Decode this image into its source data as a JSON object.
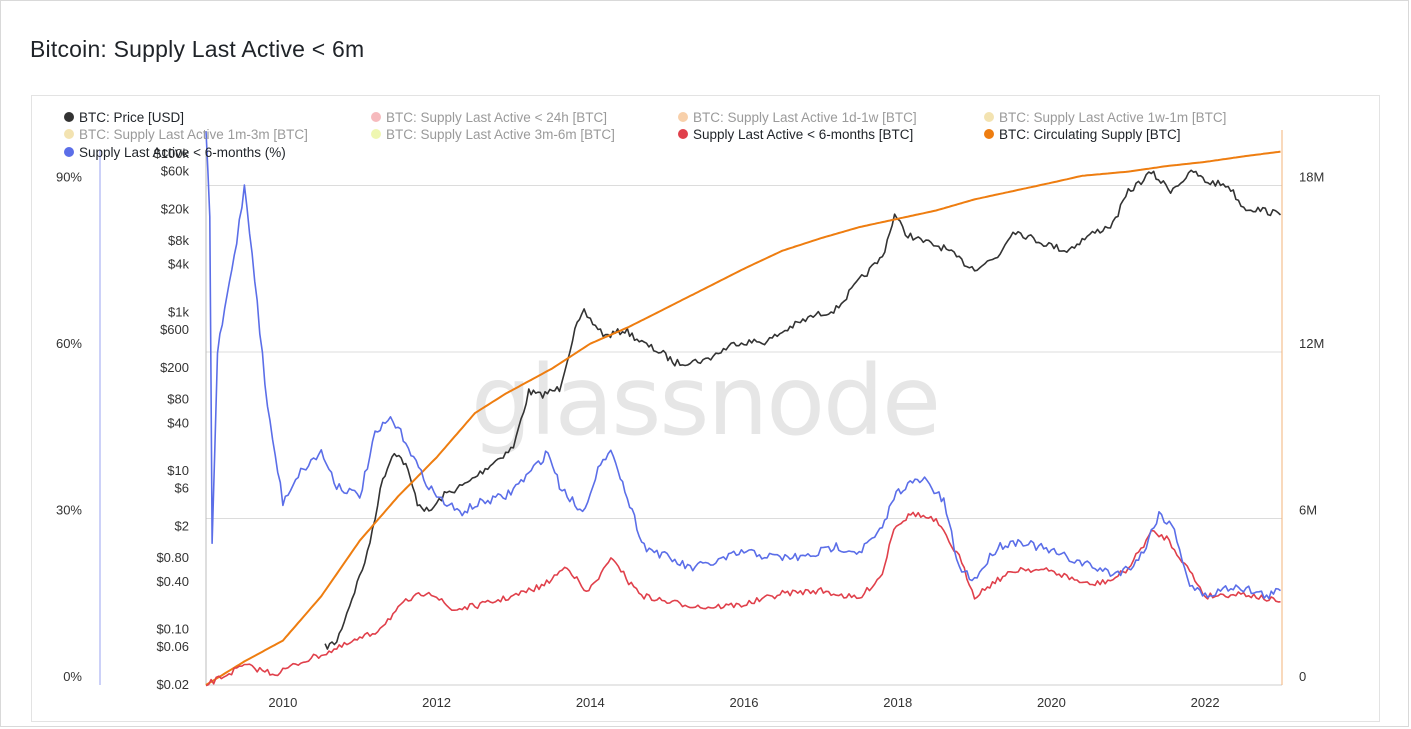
{
  "title": "Bitcoin: Supply Last Active < 6m",
  "watermark": "glassnode",
  "chart_data": {
    "type": "line",
    "title": "Bitcoin: Supply Last Active < 6m",
    "x_ticks": [
      "2010",
      "2012",
      "2014",
      "2016",
      "2018",
      "2020",
      "2022"
    ],
    "x_range": [
      2009.0,
      2023.0
    ],
    "axes": {
      "percent": {
        "side": "outer-left",
        "ticks": [
          "0%",
          "30%",
          "60%",
          "90%"
        ],
        "tick_values": [
          0,
          30,
          60,
          90
        ],
        "range": [
          0,
          100
        ]
      },
      "price": {
        "side": "left",
        "scale": "log",
        "range": [
          0.02,
          200000
        ],
        "ticks": [
          "$0.02",
          "$0.06",
          "$0.10",
          "$0.40",
          "$0.80",
          "$2",
          "$6",
          "$10",
          "$40",
          "$80",
          "$200",
          "$600",
          "$1k",
          "$4k",
          "$8k",
          "$20k",
          "$60k",
          "$100k"
        ],
        "tick_values": [
          0.02,
          0.06,
          0.1,
          0.4,
          0.8,
          2,
          6,
          10,
          40,
          80,
          200,
          600,
          1000,
          4000,
          8000,
          20000,
          60000,
          100000
        ]
      },
      "supply": {
        "side": "right",
        "ticks": [
          "0",
          "6M",
          "12M",
          "18M"
        ],
        "tick_values": [
          0,
          6000000,
          12000000,
          18000000
        ],
        "range": [
          0,
          20000000
        ]
      }
    },
    "legend": [
      {
        "label": "BTC: Price [USD]",
        "color": "#333333",
        "active": true
      },
      {
        "label": "BTC: Supply Last Active < 24h [BTC]",
        "color": "#e8535a",
        "active": false
      },
      {
        "label": "BTC: Supply Last Active 1d-1w [BTC]",
        "color": "#ee8a2a",
        "active": false
      },
      {
        "label": "BTC: Supply Last Active 1w-1m [BTC]",
        "color": "#e2b93b",
        "active": false
      },
      {
        "label": "BTC: Supply Last Active 1m-3m [BTC]",
        "color": "#e2b93b",
        "active": false
      },
      {
        "label": "BTC: Supply Last Active 3m-6m [BTC]",
        "color": "#d7ea3c",
        "active": false
      },
      {
        "label": "Supply Last Active < 6-months [BTC]",
        "color": "#e0404b",
        "active": true
      },
      {
        "label": "BTC: Circulating Supply [BTC]",
        "color": "#ee7d10",
        "active": true
      },
      {
        "label": "Supply Last Active < 6-months (%)",
        "color": "#5b6ee8",
        "active": true
      }
    ],
    "series": [
      {
        "name": "BTC: Price [USD]",
        "axis": "price",
        "color": "#333333",
        "x": [
          2010.55,
          2010.7,
          2010.9,
          2011.1,
          2011.3,
          2011.45,
          2011.6,
          2011.75,
          2011.9,
          2012.1,
          2012.4,
          2012.7,
          2013.0,
          2013.2,
          2013.35,
          2013.6,
          2013.8,
          2013.92,
          2014.0,
          2014.2,
          2014.45,
          2014.7,
          2014.95,
          2015.1,
          2015.5,
          2015.9,
          2016.3,
          2016.6,
          2016.9,
          2017.2,
          2017.5,
          2017.8,
          2017.96,
          2018.1,
          2018.3,
          2018.6,
          2018.9,
          2019.0,
          2019.3,
          2019.5,
          2019.7,
          2019.9,
          2020.2,
          2020.5,
          2020.8,
          2021.0,
          2021.3,
          2021.55,
          2021.85,
          2022.0,
          2022.3,
          2022.5,
          2022.75,
          2022.98
        ],
        "values": [
          0.06,
          0.07,
          0.25,
          0.9,
          8,
          18,
          12,
          4,
          3,
          5,
          7,
          12,
          20,
          100,
          90,
          110,
          600,
          1000,
          800,
          500,
          600,
          400,
          300,
          230,
          250,
          420,
          430,
          650,
          900,
          1100,
          2500,
          5000,
          17000,
          10000,
          8000,
          6500,
          4000,
          3600,
          5000,
          11000,
          9000,
          7500,
          6000,
          9500,
          13000,
          33000,
          58000,
          35000,
          60000,
          45000,
          40000,
          21000,
          19500,
          17000
        ]
      },
      {
        "name": "BTC: Circulating Supply [BTC]",
        "axis": "supply",
        "color": "#ee7d10",
        "x": [
          2009.0,
          2009.5,
          2010.0,
          2010.5,
          2011.0,
          2011.5,
          2012.0,
          2012.5,
          2012.9,
          2013.5,
          2014.0,
          2014.5,
          2015.0,
          2015.5,
          2016.0,
          2016.5,
          2017.0,
          2017.5,
          2018.0,
          2018.5,
          2019.0,
          2019.5,
          2020.0,
          2020.4,
          2021.0,
          2021.5,
          2022.0,
          2022.5,
          2022.98
        ],
        "values": [
          0,
          850000,
          1600000,
          3200000,
          5200000,
          6800000,
          8200000,
          9800000,
          10500000,
          11400000,
          12300000,
          12900000,
          13600000,
          14300000,
          15000000,
          15650000,
          16100000,
          16500000,
          16800000,
          17100000,
          17500000,
          17800000,
          18100000,
          18350000,
          18500000,
          18700000,
          18850000,
          19050000,
          19220000
        ]
      },
      {
        "name": "Supply Last Active < 6-months [BTC]",
        "axis": "supply",
        "color": "#e0404b",
        "x": [
          2009.0,
          2009.5,
          2009.9,
          2010.3,
          2010.7,
          2011.2,
          2011.6,
          2011.9,
          2012.2,
          2012.6,
          2013.0,
          2013.4,
          2013.7,
          2013.95,
          2014.3,
          2014.5,
          2014.7,
          2015.0,
          2015.5,
          2016.0,
          2016.5,
          2017.0,
          2017.5,
          2017.8,
          2017.95,
          2018.2,
          2018.5,
          2018.8,
          2019.0,
          2019.3,
          2019.6,
          2020.0,
          2020.5,
          2020.8,
          2021.0,
          2021.3,
          2021.5,
          2021.8,
          2022.0,
          2022.5,
          2022.8,
          2022.98
        ],
        "values": [
          0,
          700000,
          400000,
          900000,
          1300000,
          1900000,
          3000000,
          3400000,
          2700000,
          2900000,
          3200000,
          3600000,
          4300000,
          3300000,
          4600000,
          3700000,
          3200000,
          3000000,
          2800000,
          2900000,
          3300000,
          3400000,
          3100000,
          4000000,
          5700000,
          6200000,
          5900000,
          4600000,
          3200000,
          3800000,
          4200000,
          4100000,
          3600000,
          3800000,
          4200000,
          5500000,
          5300000,
          4100000,
          3200000,
          3300000,
          3100000,
          3000000
        ]
      },
      {
        "name": "Supply Last Active < 6-months (%)",
        "axis": "percent",
        "color": "#5b6ee8",
        "x": [
          2009.0,
          2009.05,
          2009.08,
          2009.15,
          2009.4,
          2009.5,
          2009.6,
          2009.8,
          2010.0,
          2010.2,
          2010.5,
          2010.7,
          2011.0,
          2011.2,
          2011.4,
          2011.6,
          2011.8,
          2012.0,
          2012.3,
          2012.6,
          2012.9,
          2013.2,
          2013.45,
          2013.6,
          2013.9,
          2014.1,
          2014.3,
          2014.45,
          2014.7,
          2015.0,
          2015.3,
          2015.6,
          2016.0,
          2016.4,
          2016.8,
          2017.2,
          2017.5,
          2017.8,
          2017.95,
          2018.1,
          2018.35,
          2018.6,
          2018.8,
          2019.0,
          2019.3,
          2019.6,
          2020.0,
          2020.4,
          2020.8,
          2021.0,
          2021.2,
          2021.4,
          2021.6,
          2021.8,
          2022.0,
          2022.4,
          2022.8,
          2022.98
        ],
        "values": [
          99,
          85,
          25,
          60,
          80,
          90,
          78,
          50,
          33,
          38,
          42,
          36,
          34,
          45,
          48,
          44,
          38,
          34,
          31,
          33,
          34,
          38,
          42,
          36,
          31,
          39,
          42,
          35,
          25,
          23,
          21,
          22,
          24,
          23,
          23,
          25,
          24,
          28,
          34,
          36,
          37,
          33,
          21,
          19,
          25,
          26,
          24,
          22,
          20,
          21,
          24,
          31,
          28,
          18,
          16,
          18,
          16,
          17
        ]
      }
    ]
  }
}
